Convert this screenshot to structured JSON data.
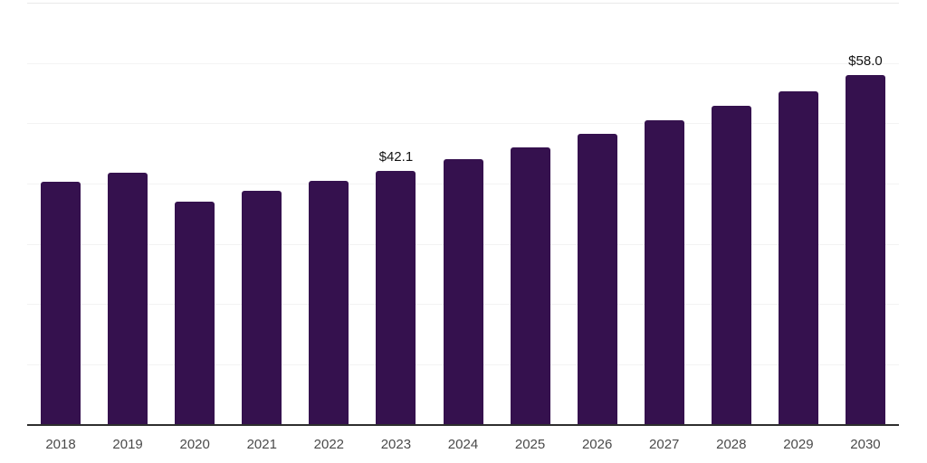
{
  "chart_data": {
    "type": "bar",
    "title": "",
    "xlabel": "",
    "ylabel": "",
    "categories": [
      "2018",
      "2019",
      "2020",
      "2021",
      "2022",
      "2023",
      "2024",
      "2025",
      "2026",
      "2027",
      "2028",
      "2029",
      "2030"
    ],
    "values": [
      40.3,
      41.9,
      37.1,
      38.9,
      40.5,
      42.1,
      44.1,
      46.1,
      48.3,
      50.6,
      52.9,
      55.4,
      58.0
    ],
    "data_labels": [
      {
        "index": 5,
        "text": "$42.1"
      },
      {
        "index": 12,
        "text": "$58.0"
      }
    ],
    "ylim": [
      0,
      70
    ],
    "grid_step": 10,
    "grid": true,
    "legend": false,
    "colors": {
      "bar": "#35114E",
      "background": "#ffffff",
      "gridline": "#f3f3f3",
      "top_gridline": "#e9e9e9",
      "axis_line": "#2e2e2e",
      "x_label": "#4a4a4a",
      "value_label": "#141414"
    }
  }
}
